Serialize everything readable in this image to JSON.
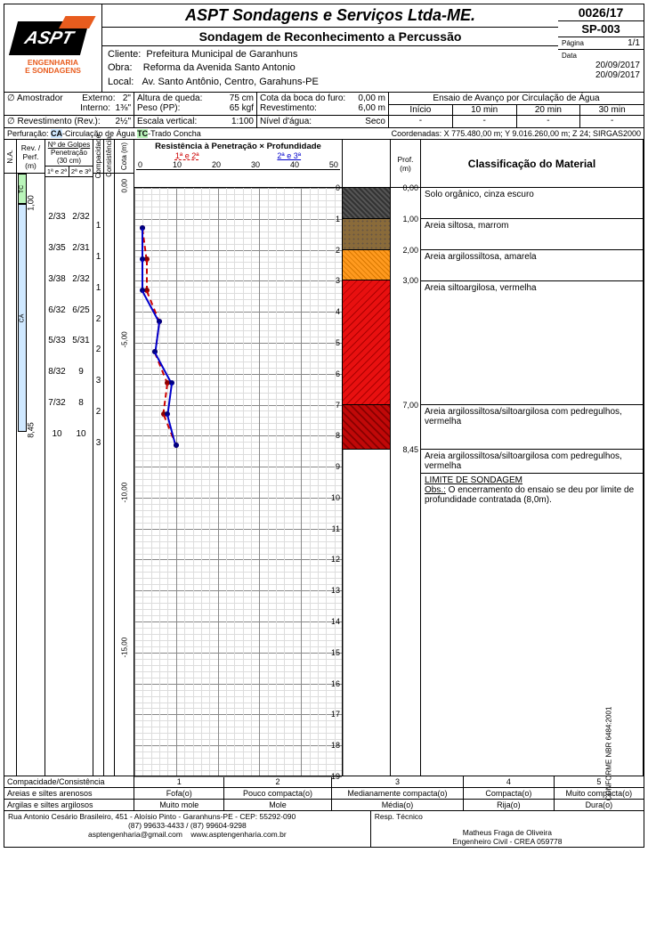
{
  "header": {
    "company": "ASPT Sondagens e Serviços Ltda-ME.",
    "subtitle": "Sondagem de Reconhecimento a Percussão",
    "doc_no": "0026/17",
    "sp": "SP-003",
    "page_lbl": "Página",
    "page_val": "1/1",
    "date_lbl": "Data",
    "date1": "20/09/2017",
    "date2": "20/09/2017",
    "logo_text": "ASPT",
    "logo_sub1": "ENGENHARIA",
    "logo_sub2": "E SONDAGENS",
    "cliente_lbl": "Cliente:",
    "cliente": "Prefeitura Municipal de Garanhuns",
    "obra_lbl": "Obra:",
    "obra": "Reforma da Avenida Santo Antonio",
    "local_lbl": "Local:",
    "local": "Av. Santo Antônio, Centro, Garahuns-PE"
  },
  "params": {
    "amostrador_lbl": "∅ Amostrador",
    "externo_lbl": "Externo:",
    "externo": "2\"",
    "interno_lbl": "Interno:",
    "interno": "1⅜\"",
    "rev_lbl": "∅ Revestimento (Rev.):",
    "revestimento_d": "2½\"",
    "queda_lbl": "Altura de queda:",
    "queda": "75 cm",
    "peso_lbl": "Peso (PP):",
    "peso": "65 kgf",
    "escala_lbl": "Escala vertical:",
    "escala": "1:100",
    "boca_lbl": "Cota da boca do furo:",
    "boca": "0,00 m",
    "revm_lbl": "Revestimento:",
    "revm": "6,00 m",
    "na_lbl": "Nível d'água:",
    "na": "Seco",
    "ensaio_lbl": "Ensaio de Avanço por Circulação de Água",
    "inicio": "Início",
    "t10": "10 min",
    "t20": "20 min",
    "t30": "30 min",
    "dash": "-"
  },
  "perf": {
    "label": "Perfuração:",
    "ca": "CA",
    "ca_txt": "-Circulação de Água",
    "tc": "TC",
    "tc_txt": "-Trado Concha",
    "coord": "Coordenadas: X 775.480,00 m; Y 9.016.260,00 m; Z 24; SIRGAS2000"
  },
  "cols": {
    "na": "N.A.",
    "rev": "Rev. / Perf. (m)",
    "golpes_t": "Nº de Golpes",
    "golpes_s": "Penetração (30 cm)",
    "g12": "1ª e 2ª",
    "g23": "2ª e 3ª",
    "comp": "Compacidade",
    "cons": "Consistência",
    "cota": "Cota (m)",
    "chart_t": "Resistência à Penetração × Profundidade",
    "leg12": "1ª e 2ª",
    "leg23": "2ª e 3ª",
    "prof": "Prof. (m)",
    "desc": "Classificação do Material"
  },
  "chart": {
    "x_ticks": [
      "0",
      "10",
      "20",
      "30",
      "40",
      "50"
    ],
    "xmax": 50,
    "depth_max": 19,
    "series_red_label": "1ª e 2ª",
    "series_blue_label": "2ª e 3ª",
    "color_red": "#c00000",
    "color_blue": "#0000c0",
    "grid_color": "#cccccc",
    "points_red": [
      [
        2,
        1.3
      ],
      [
        3,
        2.3
      ],
      [
        3,
        3.3
      ],
      [
        6,
        4.3
      ],
      [
        5,
        5.3
      ],
      [
        8,
        6.3
      ],
      [
        7,
        7.3
      ],
      [
        10,
        8.3
      ]
    ],
    "points_blue": [
      [
        2,
        1.3
      ],
      [
        2,
        2.3
      ],
      [
        2,
        3.3
      ],
      [
        6,
        4.3
      ],
      [
        5,
        5.3
      ],
      [
        9,
        6.3
      ],
      [
        8,
        7.3
      ],
      [
        10,
        8.3
      ]
    ],
    "depth_labels": [
      0,
      1,
      2,
      3,
      4,
      5,
      6,
      7,
      8,
      9,
      10,
      11,
      12,
      13,
      14,
      15,
      16,
      17,
      18,
      19
    ],
    "cota_labels": [
      "0,00",
      "-5,00",
      "-10,00",
      "-15,00"
    ]
  },
  "golpes12": [
    "2/33",
    "3/35",
    "3/38",
    "6/32",
    "5/33",
    "8/32",
    "7/32",
    "10"
  ],
  "golpes23": [
    "2/32",
    "2/31",
    "2/32",
    "6/25",
    "5/31",
    "9",
    "8",
    "10"
  ],
  "compac": [
    "1",
    "1",
    "1",
    "2",
    "2",
    "3",
    "2",
    "3"
  ],
  "rev_marks": {
    "r1": "1,00",
    "r2": "8,45"
  },
  "lithology": [
    {
      "from": 0.0,
      "to": 1.0,
      "class": "lith1"
    },
    {
      "from": 1.0,
      "to": 2.0,
      "class": "lith2"
    },
    {
      "from": 2.0,
      "to": 3.0,
      "class": "lith3"
    },
    {
      "from": 3.0,
      "to": 7.0,
      "class": "lith4"
    },
    {
      "from": 7.0,
      "to": 8.45,
      "class": "lith5"
    }
  ],
  "prof_marks": [
    "0,00",
    "1,00",
    "2,00",
    "3,00",
    "7,00",
    "8,45"
  ],
  "descriptions": [
    {
      "h": 35,
      "text": "Solo orgânico, cinza escuro"
    },
    {
      "h": 35,
      "text": "Areia siltosa, marrom"
    },
    {
      "h": 35,
      "text": "Areia argilossiltosa, amarela"
    },
    {
      "h": 139,
      "text": "Areia siltoargilosa, vermelha"
    },
    {
      "h": 50,
      "text": "Areia argilossiltosa/siltoargilosa com pedregulhos, vermelha"
    },
    {
      "h": 0,
      "text": "Areia argilossiltosa/siltoargilosa com pedregulhos, vermelha"
    }
  ],
  "limit": {
    "title": "LIMITE DE SONDAGEM",
    "obs_lbl": "Obs.:",
    "obs": "O encerramento do ensaio se deu por limite de profundidade contratada (8,0m)."
  },
  "compac_table": {
    "title": "Compacidade/Consistência",
    "nums": [
      "1",
      "2",
      "3",
      "4",
      "5"
    ],
    "row1_lbl": "Areias e siltes arenosos",
    "row1": [
      "Fofa(o)",
      "Pouco compacta(o)",
      "Medianamente compacta(o)",
      "Compacta(o)",
      "Muito compacta(o)"
    ],
    "row2_lbl": "Argilas e siltes argilosos",
    "row2": [
      "Muito mole",
      "Mole",
      "Média(o)",
      "Rija(o)",
      "Dura(o)"
    ]
  },
  "footer": {
    "addr": "Rua Antonio Cesário Brasileiro, 451 - Aloísio Pinto - Garanhuns-PE - CEP: 55292-090",
    "phones": "(87) 99633-4433  /  (87) 99604-9298",
    "email": "asptengenharia@gmail.com",
    "site": "www.asptengenharia.com.br",
    "resp_lbl": "Resp. Técnico",
    "resp1": "Matheus Fraga de Oliveira",
    "resp2": "Engenheiro Civil - CREA 059778",
    "side": "CONFORME NBR 6484:2001"
  }
}
